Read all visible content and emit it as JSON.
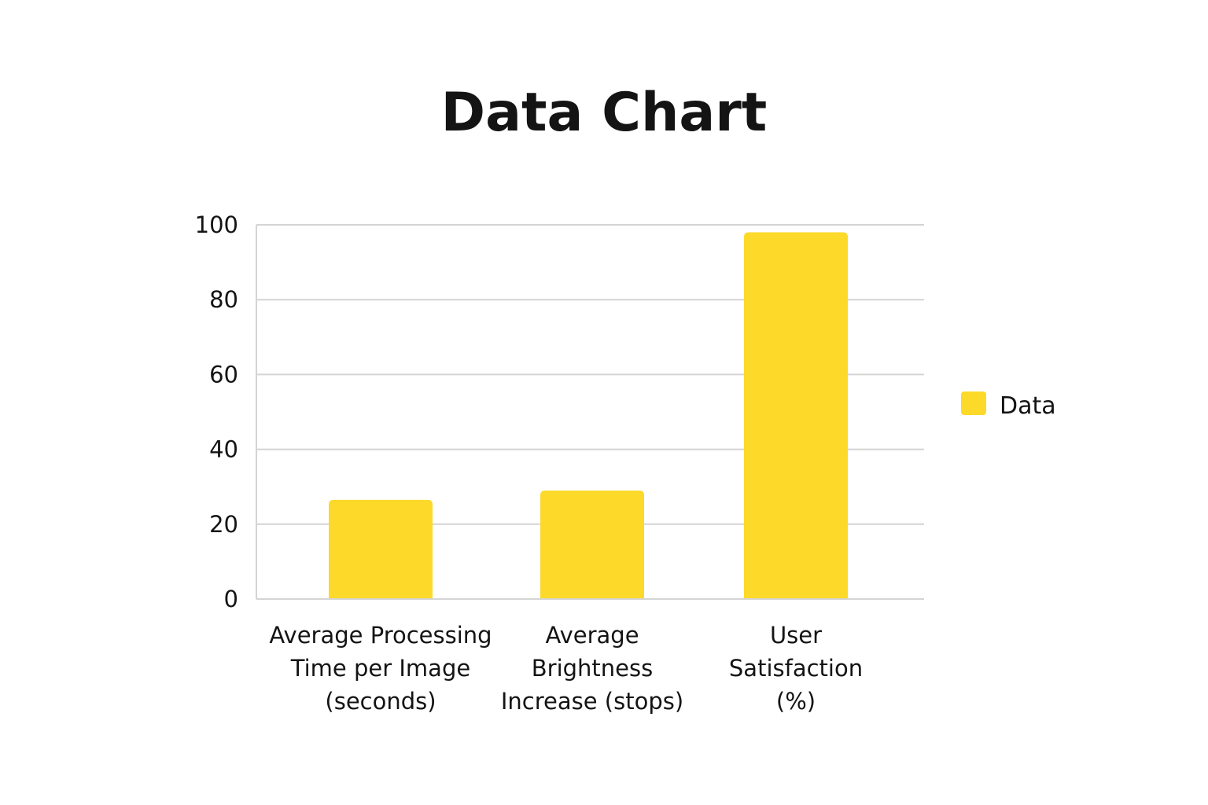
{
  "colors": {
    "bar": "#fdd92a",
    "grid": "#d4d4d4",
    "text": "#141414",
    "background": "#ffffff"
  },
  "chart_data": {
    "type": "bar",
    "title": "Data Chart",
    "xlabel": "",
    "ylabel": "",
    "ylim": [
      0,
      100
    ],
    "yticks": [
      0,
      20,
      40,
      60,
      80,
      100
    ],
    "categories": [
      [
        "Average Processing",
        "Time per Image",
        "(seconds)"
      ],
      [
        "Average",
        "Brightness",
        "Increase (stops)"
      ],
      [
        "User",
        "Satisfaction",
        "(%)"
      ]
    ],
    "series": [
      {
        "name": "Data",
        "values": [
          26.5,
          29,
          98
        ]
      }
    ],
    "grid": true,
    "legend_position": "right"
  }
}
